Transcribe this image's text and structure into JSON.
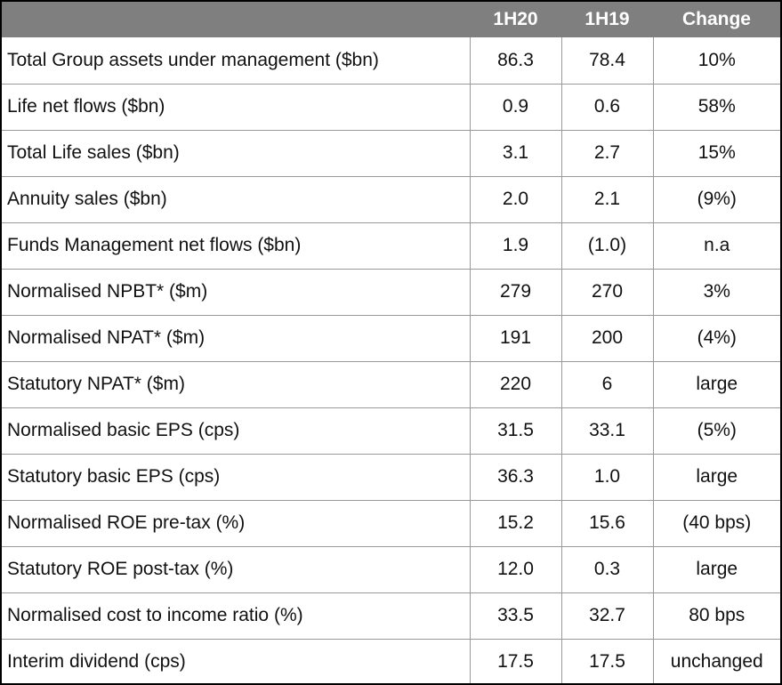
{
  "table": {
    "headers": [
      "",
      "1H20",
      "1H19",
      "Change"
    ],
    "rows": [
      {
        "label": "Total Group assets under management ($bn)",
        "h1_20": "86.3",
        "h1_19": "78.4",
        "change": "10%"
      },
      {
        "label": "Life net flows ($bn)",
        "h1_20": "0.9",
        "h1_19": "0.6",
        "change": "58%"
      },
      {
        "label": "Total Life sales ($bn)",
        "h1_20": "3.1",
        "h1_19": "2.7",
        "change": "15%"
      },
      {
        "label": "Annuity sales ($bn)",
        "h1_20": "2.0",
        "h1_19": "2.1",
        "change": "(9%)"
      },
      {
        "label": "Funds Management net flows ($bn)",
        "h1_20": "1.9",
        "h1_19": "(1.0)",
        "change": "n.a"
      },
      {
        "label": "Normalised NPBT* ($m)",
        "h1_20": "279",
        "h1_19": "270",
        "change": "3%"
      },
      {
        "label": "Normalised NPAT* ($m)",
        "h1_20": "191",
        "h1_19": "200",
        "change": "(4%)"
      },
      {
        "label": "Statutory NPAT* ($m)",
        "h1_20": "220",
        "h1_19": "6",
        "change": "large"
      },
      {
        "label": "Normalised basic EPS (cps)",
        "h1_20": "31.5",
        "h1_19": "33.1",
        "change": "(5%)"
      },
      {
        "label": "Statutory basic EPS (cps)",
        "h1_20": "36.3",
        "h1_19": "1.0",
        "change": "large"
      },
      {
        "label": "Normalised ROE pre-tax (%)",
        "h1_20": "15.2",
        "h1_19": "15.6",
        "change": "(40 bps)"
      },
      {
        "label": "Statutory ROE post-tax (%)",
        "h1_20": "12.0",
        "h1_19": "0.3",
        "change": "large"
      },
      {
        "label": "Normalised cost to income ratio (%)",
        "h1_20": "33.5",
        "h1_19": "32.7",
        "change": "80 bps"
      },
      {
        "label": "Interim dividend (cps)",
        "h1_20": "17.5",
        "h1_19": "17.5",
        "change": "unchanged"
      }
    ]
  },
  "colors": {
    "header_background": "#7f7f7f",
    "header_text": "#ffffff",
    "grid_line": "#9a9a9a",
    "frame_border": "#000000"
  }
}
